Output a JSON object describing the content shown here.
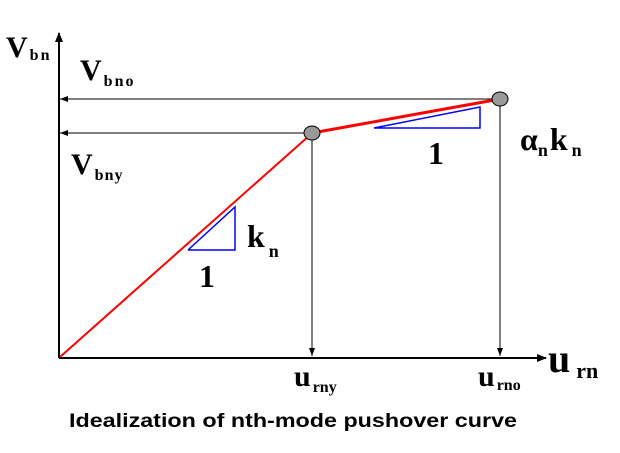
{
  "labels": {
    "y_axis": {
      "main": "V",
      "sub": "bn"
    },
    "x_axis": {
      "main": "u",
      "sub": "rn"
    },
    "v_bno": {
      "main": "V",
      "sub": "bno"
    },
    "v_bny": {
      "main": "V",
      "sub": "bny"
    },
    "u_rny": {
      "main": "u",
      "sub": "rny"
    },
    "u_rno": {
      "main": "u",
      "sub": "rno"
    },
    "elastic_slope": {
      "main": "k",
      "sub": "n"
    },
    "elastic_run": "1",
    "post_yield_slope": {
      "alpha": "α",
      "alpha_sub": "n",
      "main": "k",
      "sub": "n"
    },
    "post_yield_run": "1"
  },
  "caption": "Idealization of nth-mode pushover curve",
  "colors": {
    "curve": "#ff0000",
    "slope_triangle": "#0000ff",
    "point": "#999999",
    "axes": "#000000"
  }
}
